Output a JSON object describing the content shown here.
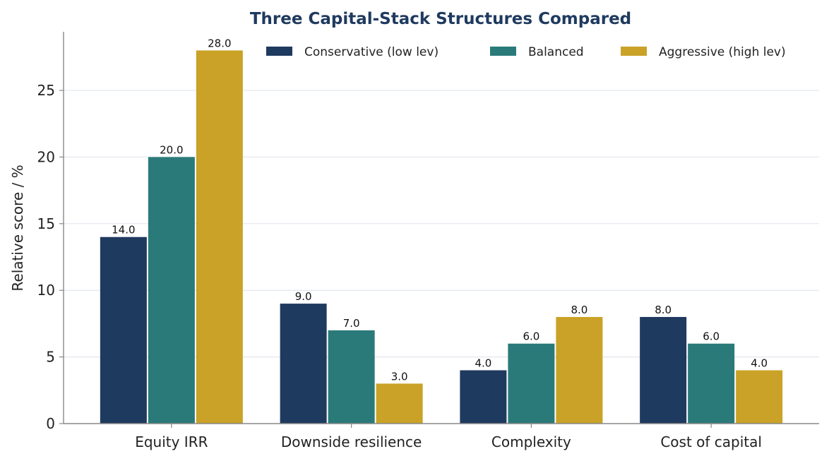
{
  "chart_data": {
    "type": "bar",
    "title": "Three Capital-Stack Structures Compared",
    "xlabel": "",
    "ylabel": "Relative score / %",
    "categories": [
      "Equity IRR",
      "Downside resilience",
      "Complexity",
      "Cost of capital"
    ],
    "series": [
      {
        "name": "Conservative (low lev)",
        "color": "#1f3a5f",
        "values": [
          14.0,
          9.0,
          4.0,
          8.0
        ]
      },
      {
        "name": "Balanced",
        "color": "#2b7a7a",
        "values": [
          20.0,
          7.0,
          6.0,
          6.0
        ]
      },
      {
        "name": "Aggressive (high lev)",
        "color": "#c9a227",
        "values": [
          28.0,
          3.0,
          8.0,
          4.0
        ]
      }
    ],
    "ylim": [
      0,
      29.4
    ],
    "yticks": [
      0,
      5,
      10,
      15,
      20,
      25
    ],
    "grid": "y",
    "legend": "top-right",
    "data_label_format": "one-decimal"
  }
}
